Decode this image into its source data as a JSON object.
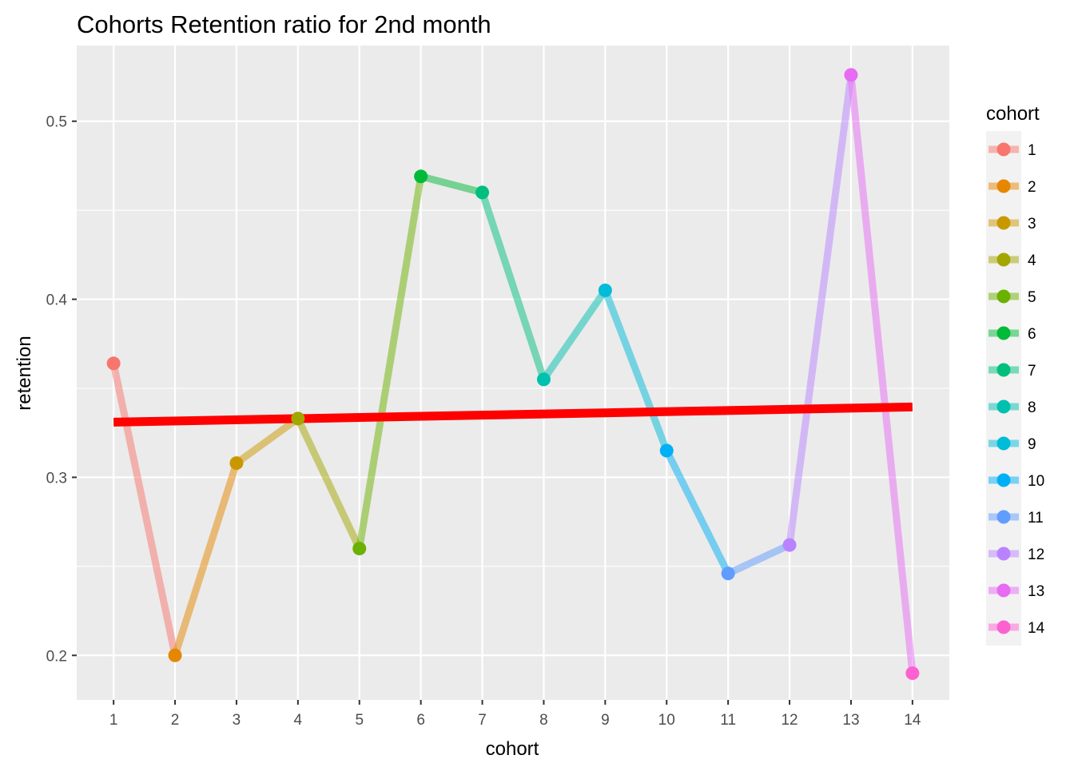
{
  "chart_data": {
    "type": "line",
    "title": "Cohorts Retention ratio for 2nd month",
    "xlabel": "cohort",
    "ylabel": "retention",
    "x": [
      1,
      2,
      3,
      4,
      5,
      6,
      7,
      8,
      9,
      10,
      11,
      12,
      13,
      14
    ],
    "x_ticks": [
      "1",
      "2",
      "3",
      "4",
      "5",
      "6",
      "7",
      "8",
      "9",
      "10",
      "11",
      "12",
      "13",
      "14"
    ],
    "xlim": [
      0.4,
      14.6
    ],
    "y_ticks": [
      "0.2",
      "0.3",
      "0.4",
      "0.5"
    ],
    "ylim": [
      0.175,
      0.5425
    ],
    "grid": true,
    "legend_placement": "right",
    "series": [
      {
        "name": "retention",
        "values": [
          0.364,
          0.2,
          0.308,
          0.333,
          0.26,
          0.469,
          0.46,
          0.355,
          0.405,
          0.315,
          0.246,
          0.262,
          0.526,
          0.19
        ]
      }
    ],
    "trend_line": {
      "from": [
        1,
        0.331
      ],
      "to": [
        14,
        0.3395
      ],
      "color": "#ff0000"
    },
    "legend": {
      "title": "cohort",
      "entries": [
        "1",
        "2",
        "3",
        "4",
        "5",
        "6",
        "7",
        "8",
        "9",
        "10",
        "11",
        "12",
        "13",
        "14"
      ]
    },
    "colors": [
      "#F8766D",
      "#E58700",
      "#C99800",
      "#A3A500",
      "#6BB100",
      "#00BA38",
      "#00BF7D",
      "#00C0AF",
      "#00BCD8",
      "#00B0F6",
      "#619CFF",
      "#B983FF",
      "#E76BF3",
      "#FD61D1"
    ],
    "panel_background": "#EBEBEB",
    "grid_color": "#FFFFFF"
  }
}
